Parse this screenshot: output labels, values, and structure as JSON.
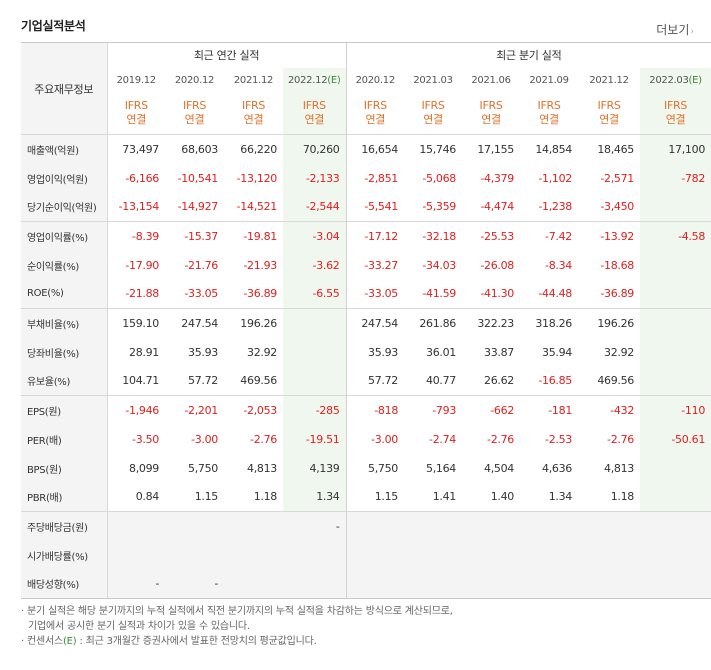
{
  "title": "기업실적분석",
  "more_link": "더보기",
  "header": {
    "row_label": "주요재무정보",
    "annual_group": "최근 연간 실적",
    "quarter_group": "최근 분기 실적",
    "annual_periods": [
      "2019.12",
      "2020.12",
      "2021.12"
    ],
    "annual_est_year": "2022.12",
    "quarter_periods": [
      "2020.12",
      "2021.03",
      "2021.06",
      "2021.09",
      "2021.12"
    ],
    "quarter_est_year": "2022.03",
    "est_mark": "(E)",
    "ifrs_top": "IFRS",
    "ifrs_bottom": "연결"
  },
  "rows": [
    {
      "label": "매출액(억원)",
      "values": [
        "73,497",
        "68,603",
        "66,220",
        "70,260",
        "16,654",
        "15,746",
        "17,155",
        "14,854",
        "18,465",
        "17,100"
      ]
    },
    {
      "label": "영업이익(억원)",
      "values": [
        "-6,166",
        "-10,541",
        "-13,120",
        "-2,133",
        "-2,851",
        "-5,068",
        "-4,379",
        "-1,102",
        "-2,571",
        "-782"
      ]
    },
    {
      "label": "당기순이익(억원)",
      "values": [
        "-13,154",
        "-14,927",
        "-14,521",
        "-2,544",
        "-5,541",
        "-5,359",
        "-4,474",
        "-1,238",
        "-3,450",
        ""
      ]
    },
    {
      "label": "영업이익률(%)",
      "values": [
        "-8.39",
        "-15.37",
        "-19.81",
        "-3.04",
        "-17.12",
        "-32.18",
        "-25.53",
        "-7.42",
        "-13.92",
        "-4.58"
      ]
    },
    {
      "label": "순이익률(%)",
      "values": [
        "-17.90",
        "-21.76",
        "-21.93",
        "-3.62",
        "-33.27",
        "-34.03",
        "-26.08",
        "-8.34",
        "-18.68",
        ""
      ]
    },
    {
      "label": "ROE(%)",
      "values": [
        "-21.88",
        "-33.05",
        "-36.89",
        "-6.55",
        "-33.05",
        "-41.59",
        "-41.30",
        "-44.48",
        "-36.89",
        ""
      ]
    },
    {
      "label": "부채비율(%)",
      "values": [
        "159.10",
        "247.54",
        "196.26",
        "",
        "247.54",
        "261.86",
        "322.23",
        "318.26",
        "196.26",
        ""
      ]
    },
    {
      "label": "당좌비율(%)",
      "values": [
        "28.91",
        "35.93",
        "32.92",
        "",
        "35.93",
        "36.01",
        "33.87",
        "35.94",
        "32.92",
        ""
      ]
    },
    {
      "label": "유보율(%)",
      "values": [
        "104.71",
        "57.72",
        "469.56",
        "",
        "57.72",
        "40.77",
        "26.62",
        "-16.85",
        "469.56",
        ""
      ]
    },
    {
      "label": "EPS(원)",
      "values": [
        "-1,946",
        "-2,201",
        "-2,053",
        "-285",
        "-818",
        "-793",
        "-662",
        "-181",
        "-432",
        "-110"
      ]
    },
    {
      "label": "PER(배)",
      "values": [
        "-3.50",
        "-3.00",
        "-2.76",
        "-19.51",
        "-3.00",
        "-2.74",
        "-2.76",
        "-2.53",
        "-2.76",
        "-50.61"
      ]
    },
    {
      "label": "BPS(원)",
      "values": [
        "8,099",
        "5,750",
        "4,813",
        "4,139",
        "5,750",
        "5,164",
        "4,504",
        "4,636",
        "4,813",
        ""
      ]
    },
    {
      "label": "PBR(배)",
      "values": [
        "0.84",
        "1.15",
        "1.18",
        "1.34",
        "1.15",
        "1.41",
        "1.40",
        "1.34",
        "1.18",
        ""
      ]
    },
    {
      "label": "주당배당금(원)",
      "values": [
        "",
        "",
        "",
        "-",
        "",
        "",
        "",
        "",
        "",
        ""
      ]
    },
    {
      "label": "시가배당률(%)",
      "values": [
        "",
        "",
        "",
        "",
        "",
        "",
        "",
        "",
        "",
        ""
      ]
    },
    {
      "label": "배당성향(%)",
      "values": [
        "-",
        "-",
        "",
        "",
        "",
        "",
        "",
        "",
        "",
        ""
      ]
    }
  ],
  "notes": {
    "line1": "분기 실적은 해당 분기까지의 누적 실적에서 직전 분기까지의 누적 실적을 차감하는 방식으로 계산되므로,",
    "line2": "기업에서 공시한 분기 실적과 차이가 있을 수 있습니다.",
    "line3_prefix": "컨센서스",
    "line3_mark": "(E)",
    "line3_suffix": " : 최근 3개월간 증권사에서 발표한 전망치의 평균값입니다."
  },
  "colors": {
    "negative": "#e02020",
    "ifrs": "#e0712b",
    "estimate_bg": "#f0f7ee",
    "estimate_mark": "#3a8d3a"
  }
}
